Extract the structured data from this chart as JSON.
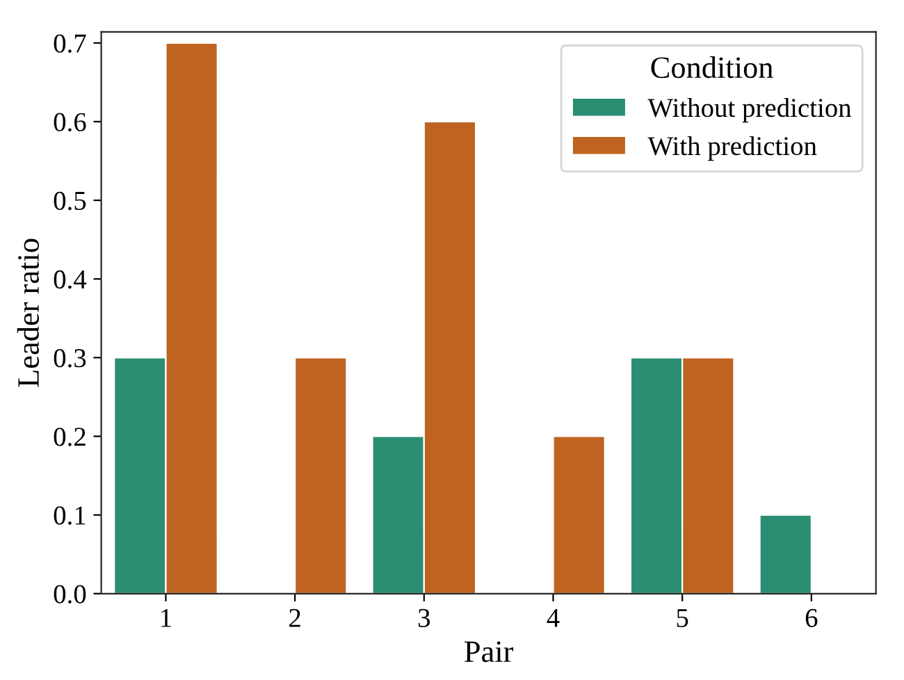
{
  "chart_data": {
    "type": "bar",
    "xlabel": "Pair",
    "ylabel": "Leader ratio",
    "legend_title": "Condition",
    "categories": [
      "1",
      "2",
      "3",
      "4",
      "5",
      "6"
    ],
    "series": [
      {
        "name": "Without prediction",
        "color": "#2b8e72",
        "values": [
          0.3,
          0,
          0.2,
          0,
          0.3,
          0.1
        ]
      },
      {
        "name": "With prediction",
        "color": "#be6420",
        "values": [
          0.7,
          0.3,
          0.6,
          0.2,
          0.3,
          0
        ]
      }
    ],
    "ylim": [
      0,
      0.714
    ],
    "yticks": [
      {
        "value": 0,
        "label": "0.0"
      },
      0.1,
      0.2,
      0.3,
      0.4,
      0.5,
      0.6,
      0.7
    ],
    "grid": false,
    "legend": "top right"
  }
}
